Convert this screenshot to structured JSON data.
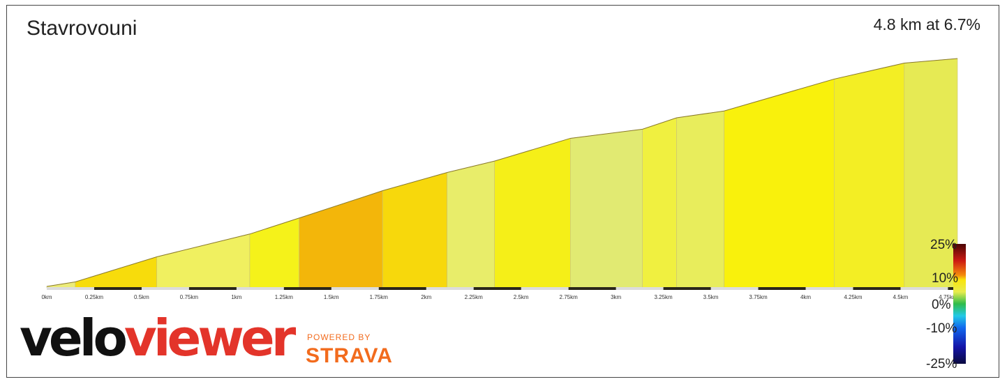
{
  "header": {
    "title": "Stavrovouni",
    "summary": "4.8 km at 6.7%"
  },
  "chart_data": {
    "type": "area",
    "title": "Stavrovouni",
    "xlabel": "",
    "ylabel": "",
    "x_unit": "km",
    "xlim": [
      0,
      4.8
    ],
    "tick_labels": [
      "0km",
      "0.25km",
      "0.5km",
      "0.75km",
      "1km",
      "1.25km",
      "1.5km",
      "1.75km",
      "2km",
      "2.25km",
      "2.5km",
      "2.75km",
      "3km",
      "3.25km",
      "3.5km",
      "3.75km",
      "4km",
      "4.25km",
      "4.5km",
      "4.75km"
    ],
    "segments": [
      {
        "start_km": 0.0,
        "end_km": 0.15,
        "gradient_pct": 3,
        "color": "#ecec7a"
      },
      {
        "start_km": 0.15,
        "end_km": 0.58,
        "gradient_pct": 9,
        "color": "#f7dc0c"
      },
      {
        "start_km": 0.58,
        "end_km": 1.07,
        "gradient_pct": 7,
        "color": "#f0f060"
      },
      {
        "start_km": 1.07,
        "end_km": 1.33,
        "gradient_pct": 7,
        "color": "#f5f21a"
      },
      {
        "start_km": 1.33,
        "end_km": 1.77,
        "gradient_pct": 12,
        "color": "#f3b60a"
      },
      {
        "start_km": 1.77,
        "end_km": 2.11,
        "gradient_pct": 10,
        "color": "#f7d80c"
      },
      {
        "start_km": 2.11,
        "end_km": 2.36,
        "gradient_pct": 5,
        "color": "#e8ed6a"
      },
      {
        "start_km": 2.36,
        "end_km": 2.76,
        "gradient_pct": 8,
        "color": "#f5ef18"
      },
      {
        "start_km": 2.76,
        "end_km": 3.14,
        "gradient_pct": 3,
        "color": "#e1ea72"
      },
      {
        "start_km": 3.14,
        "end_km": 3.32,
        "gradient_pct": 7,
        "color": "#f0f040"
      },
      {
        "start_km": 3.32,
        "end_km": 3.57,
        "gradient_pct": 5,
        "color": "#e8ed5c"
      },
      {
        "start_km": 3.57,
        "end_km": 4.15,
        "gradient_pct": 8,
        "color": "#f9f10c"
      },
      {
        "start_km": 4.15,
        "end_km": 4.52,
        "gradient_pct": 7,
        "color": "#f3ee24"
      },
      {
        "start_km": 4.52,
        "end_km": 4.8,
        "gradient_pct": 5,
        "color": "#e6ea54"
      }
    ],
    "elevation_profile": {
      "x_km": [
        0.0,
        0.15,
        0.58,
        1.07,
        1.33,
        1.77,
        2.11,
        2.36,
        2.76,
        3.14,
        3.32,
        3.57,
        4.15,
        4.52,
        4.8
      ],
      "relative_height": [
        0.0,
        0.02,
        0.13,
        0.23,
        0.3,
        0.42,
        0.5,
        0.55,
        0.65,
        0.69,
        0.74,
        0.77,
        0.91,
        0.98,
        1.0
      ]
    },
    "legend": {
      "type": "gradient colorbar",
      "placement": "bottom-right",
      "labels": [
        "25%",
        "10%",
        "0%",
        "-10%",
        "-25%"
      ],
      "stops": [
        {
          "value": 25,
          "color": "#4a0505"
        },
        {
          "value": 18,
          "color": "#cc1a12"
        },
        {
          "value": 12,
          "color": "#f58a0c"
        },
        {
          "value": 10,
          "color": "#f9e40c"
        },
        {
          "value": 5,
          "color": "#e8ec4e"
        },
        {
          "value": 0,
          "color": "#2ebc4a"
        },
        {
          "value": -5,
          "color": "#23c9e6"
        },
        {
          "value": -10,
          "color": "#1268ee"
        },
        {
          "value": -18,
          "color": "#1414a8"
        },
        {
          "value": -25,
          "color": "#0a0a40"
        }
      ]
    }
  },
  "branding": {
    "logo_part1": "velo",
    "logo_part2": "viewer",
    "powered_by": "POWERED BY",
    "strava": "STRAVA",
    "velo_color": "#111111",
    "viewer_color": "#e3342a",
    "strava_color": "#f26b1d"
  }
}
